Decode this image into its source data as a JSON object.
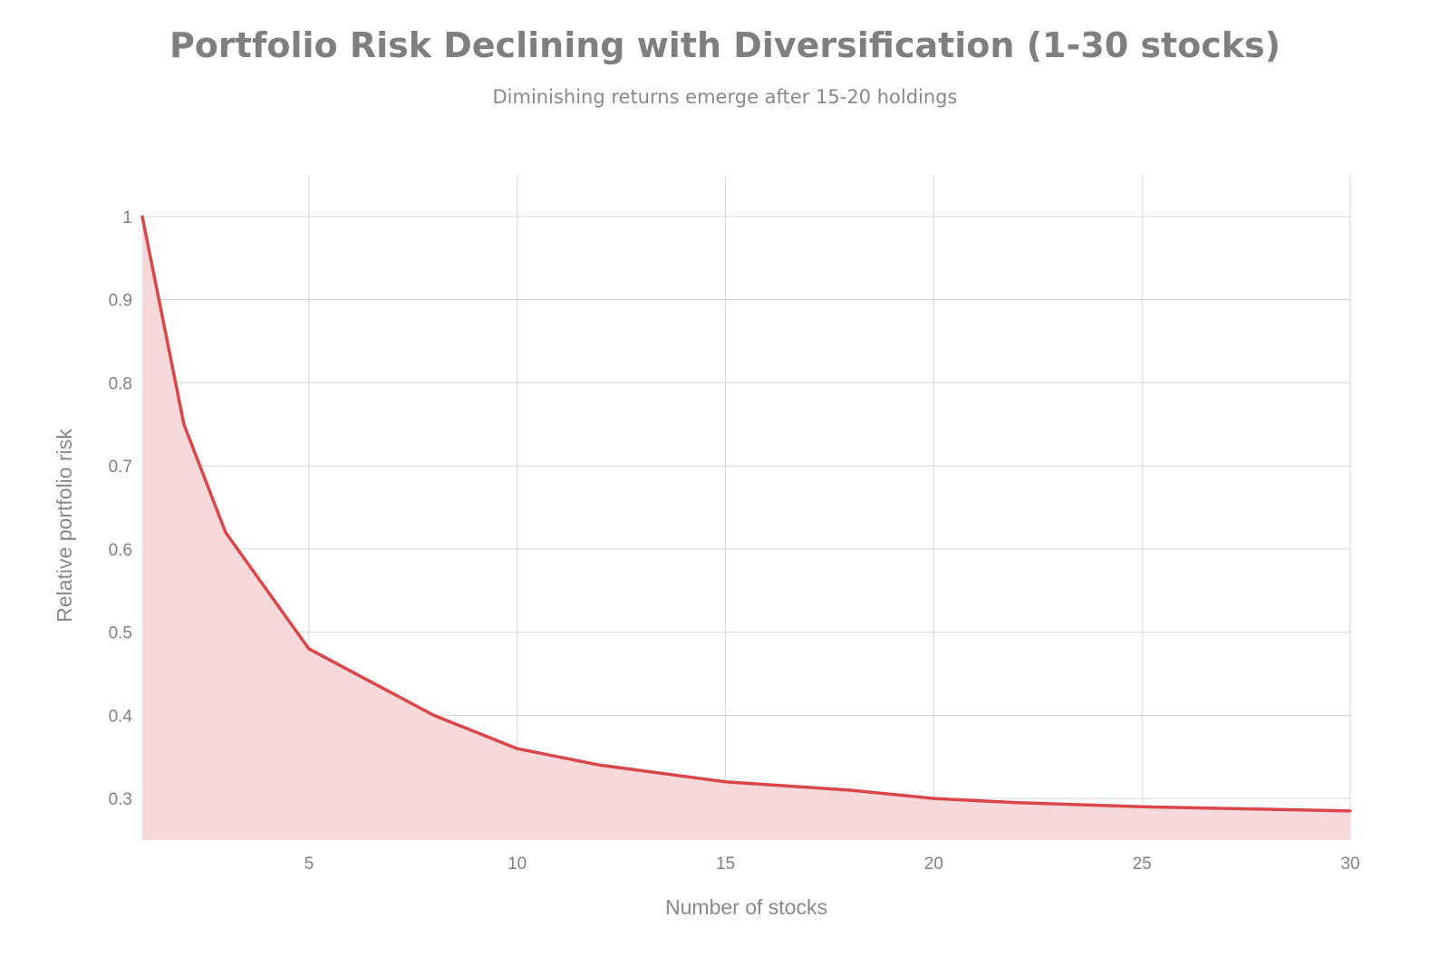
{
  "chart_data": {
    "type": "area",
    "title": "Portfolio Risk Declining with Diversification (1-30 stocks)",
    "subtitle": "Diminishing returns emerge after 15-20 holdings",
    "xlabel": "Number of stocks",
    "ylabel": "Relative portfolio risk",
    "xlim": [
      1,
      30
    ],
    "ylim": [
      0.25,
      1.05
    ],
    "xticks": [
      5,
      10,
      15,
      20,
      25,
      30
    ],
    "yticks": [
      0.3,
      0.4,
      0.5,
      0.6,
      0.7,
      0.8,
      0.9,
      1
    ],
    "ytick_labels": [
      "0.3",
      "0.4",
      "0.5",
      "0.6",
      "0.7",
      "0.8",
      "0.9",
      "1"
    ],
    "grid": true,
    "line_color": "#d9474a",
    "fill_color": "#f8d9db",
    "series": [
      {
        "x": [
          1,
          2,
          3,
          5,
          8,
          10,
          12,
          15,
          18,
          20,
          22,
          25,
          30
        ],
        "y": [
          1.0,
          0.75,
          0.62,
          0.48,
          0.4,
          0.36,
          0.34,
          0.32,
          0.31,
          0.3,
          0.295,
          0.29,
          0.285
        ]
      }
    ]
  }
}
